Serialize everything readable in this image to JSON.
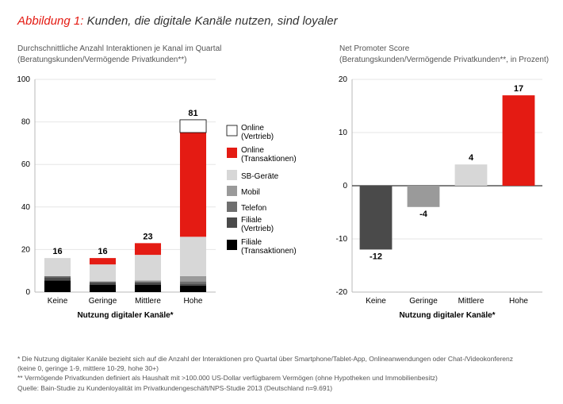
{
  "figure": {
    "label": "Abbildung 1:",
    "title": "Kunden, die digitale Kanäle nutzen, sind loyaler",
    "label_color": "#e41b13",
    "title_color": "#333333",
    "title_fontsize": 15
  },
  "left_chart": {
    "type": "stacked_bar",
    "subtitle_line1": "Durchschnittliche Anzahl Interaktionen je Kanal im Quartal",
    "subtitle_line2": "(Beratungskunden/Vermögende Privatkunden**)",
    "categories": [
      "Keine",
      "Geringe",
      "Mittlere",
      "Hohe"
    ],
    "x_title": "Nutzung digitaler Kanäle*",
    "ylim": [
      0,
      100
    ],
    "ytick_step": 20,
    "totals": [
      16,
      16,
      23,
      81
    ],
    "series": [
      {
        "name": "Filiale (Transaktionen)",
        "color": "#000000",
        "values": [
          5.5,
          3.5,
          3.5,
          3
        ]
      },
      {
        "name": "Filiale (Vertrieb)",
        "color": "#4a4a4a",
        "values": [
          1.5,
          1,
          1,
          1
        ]
      },
      {
        "name": "Telefon",
        "color": "#6f6f6f",
        "values": [
          0.5,
          0.5,
          0.5,
          1
        ]
      },
      {
        "name": "Mobil",
        "color": "#9a9a9a",
        "values": [
          0,
          0,
          0.5,
          2.5
        ]
      },
      {
        "name": "SB-Geräte",
        "color": "#d7d7d7",
        "values": [
          8.5,
          8,
          12,
          18.5
        ]
      },
      {
        "name": "Online (Transaktionen)",
        "color": "#e41b13",
        "values": [
          0,
          3,
          5.5,
          49
        ]
      },
      {
        "name": "Online (Vertrieb)",
        "color": "#ffffff",
        "values": [
          0,
          0,
          0,
          6
        ]
      }
    ],
    "bar_width": 0.58,
    "grid_color": "#e6e6e6",
    "axis_color": "#b8b8b8",
    "legend_order": [
      "Online (Vertrieb)",
      "Online (Transaktionen)",
      "SB-Geräte",
      "Mobil",
      "Telefon",
      "Filiale (Vertrieb)",
      "Filiale (Transaktionen)"
    ]
  },
  "right_chart": {
    "type": "bar",
    "subtitle_line1": "Net Promoter Score",
    "subtitle_line2": "(Beratungskunden/Vermögende Privatkunden**, in Prozent)",
    "categories": [
      "Keine",
      "Geringe",
      "Mittlere",
      "Hohe"
    ],
    "x_title": "Nutzung digitaler Kanäle*",
    "values": [
      -12,
      -4,
      4,
      17
    ],
    "bar_colors": [
      "#4a4a4a",
      "#9a9a9a",
      "#d7d7d7",
      "#e41b13"
    ],
    "ylim": [
      -20,
      20
    ],
    "ytick_step": 10,
    "bar_width": 0.68,
    "grid_color": "#e6e6e6",
    "axis_color": "#b8b8b8"
  },
  "footnotes": {
    "f1": "*   Die Nutzung digitaler Kanäle bezieht sich auf die Anzahl der Interaktionen pro Quartal über Smartphone/Tablet-App, Onlineanwendungen oder Chat-/Videokonferenz",
    "f1b": "     (keine 0, geringe 1-9, mittlere 10-29, hohe 30+)",
    "f2": "** Vermögende Privatkunden definiert als Haushalt mit >100.000 US-Dollar verfügbarem Vermögen (ohne Hypotheken und Immobilienbesitz)",
    "src": "Quelle: Bain-Studie zu Kundenloyalität im Privatkundengeschäft/NPS-Studie 2013 (Deutschland n=9.691)"
  }
}
